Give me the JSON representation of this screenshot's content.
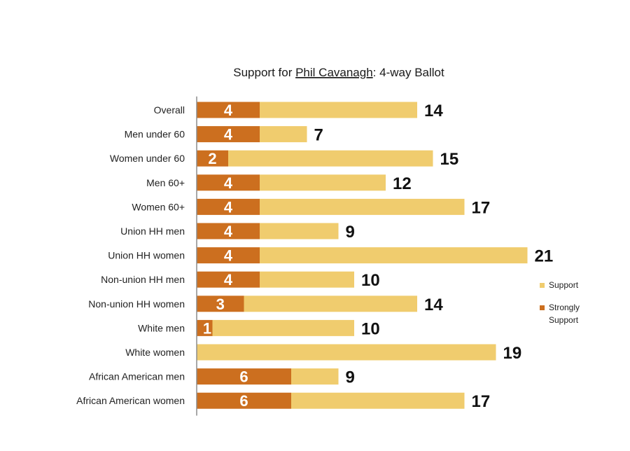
{
  "colors": {
    "support": "#F0CC6E",
    "strongly_support": "#CC6F1F",
    "axis": "#8c8c8c",
    "title": "#1a1a1a"
  },
  "chart_data": {
    "type": "bar",
    "orientation": "horizontal",
    "stacked": true,
    "title": {
      "prefix": "Support for ",
      "underlined": "Phil Cavanagh",
      "suffix": ": 4-way Ballot"
    },
    "categories": [
      "Overall",
      "Men under 60",
      "Women under 60",
      "Men 60+",
      "Women 60+",
      "Union HH men",
      "Union HH women",
      "Non-union HH men",
      "Non-union HH women",
      "White men",
      "White women",
      "African American men",
      "African American women"
    ],
    "series": [
      {
        "name": "Strongly Support",
        "values": [
          4,
          4,
          2,
          4,
          4,
          4,
          4,
          4,
          3,
          1,
          0,
          6,
          6
        ]
      },
      {
        "name": "Support",
        "values": [
          10,
          3,
          13,
          8,
          13,
          5,
          17,
          6,
          11,
          9,
          19,
          3,
          11
        ]
      }
    ],
    "totals": [
      14,
      7,
      15,
      12,
      17,
      9,
      21,
      10,
      14,
      10,
      19,
      9,
      17
    ],
    "legend": [
      {
        "name": "Support",
        "lines": [
          "Support"
        ]
      },
      {
        "name": "Strongly Support",
        "lines": [
          "Strongly",
          "Support"
        ]
      }
    ],
    "legend_position": "right",
    "xlim": [
      0,
      22
    ],
    "grid": false,
    "xlabel": "",
    "ylabel": ""
  }
}
